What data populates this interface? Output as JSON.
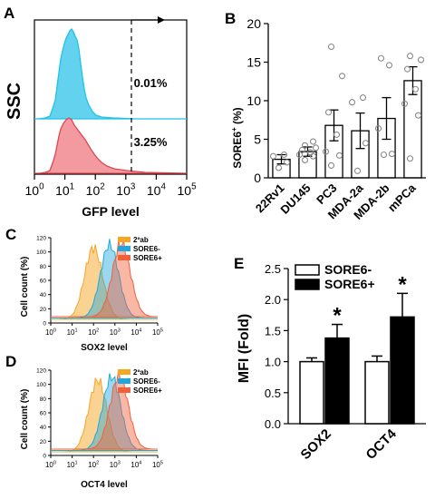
{
  "colors": {
    "teal": "#1ec3e8",
    "teal_fill": "#63d2ee",
    "red": "#e0454f",
    "red_fill": "#f29aa0",
    "orange": "#f5a623",
    "blue": "#1fa8e0",
    "coral": "#f2603a",
    "grey_pts": "#888888",
    "black": "#000000"
  },
  "panel_A": {
    "letter": "A",
    "ylabel": "SSC",
    "xlabel": "GFP level",
    "x_ticks": [
      "10",
      "10",
      "10",
      "10",
      "10",
      "10"
    ],
    "x_exps": [
      "0",
      "1",
      "2",
      "3",
      "4",
      "5"
    ],
    "pct_top": "0.01%",
    "pct_bottom": "3.25%"
  },
  "panel_B": {
    "letter": "B",
    "ylabel_main": "SORE6",
    "ylabel_sup": "+",
    "ylabel_tail": " (%)",
    "y_ticks": [
      "0",
      "5",
      "10",
      "15",
      "20"
    ]
  },
  "panel_C": {
    "letter": "C",
    "ylabel": "Cell count (%)",
    "xlabel": "SOX2 level",
    "legend": [
      "2ºab",
      "SORE6-",
      "SORE6+"
    ]
  },
  "panel_D": {
    "letter": "D",
    "ylabel": "Cell count (%)",
    "xlabel": "OCT4 level",
    "legend": [
      "2ºab",
      "SORE6-",
      "SORE6+"
    ]
  },
  "panel_E": {
    "letter": "E",
    "ylabel": "MFI (Fold)",
    "legend": [
      "SORE6-",
      "SORE6+"
    ],
    "sig_marks": [
      "*",
      "*"
    ]
  },
  "small_hist_ticks": [
    "0",
    "20",
    "40",
    "60",
    "80",
    "100",
    "120"
  ],
  "small_hist_xticks": [
    "10",
    "10",
    "10",
    "10",
    "10",
    "10"
  ],
  "small_hist_xexps": [
    "0",
    "1",
    "2",
    "3",
    "4",
    "5"
  ],
  "chart_data": [
    {
      "panel": "B",
      "type": "bar",
      "categories": [
        "22Rv1",
        "DU145",
        "PC3",
        "MDA-2a",
        "MDA-2b",
        "mPCa"
      ],
      "values": [
        2.4,
        3.4,
        6.8,
        6.1,
        7.7,
        12.6
      ],
      "errors": [
        0.6,
        0.6,
        2.0,
        2.3,
        2.7,
        1.8
      ],
      "points": [
        [
          1.3,
          2.0,
          2.8,
          3.0
        ],
        [
          2.3,
          2.8,
          3.0,
          3.3,
          3.6,
          3.9,
          4.2,
          4.7
        ],
        [
          1.6,
          2.9,
          3.4,
          5.6,
          8.5,
          13.2,
          17.0
        ],
        [
          0.9,
          4.5,
          9.8,
          10.4
        ],
        [
          3.0,
          3.1,
          6.4,
          14.6,
          15.5
        ],
        [
          2.5,
          8.1,
          9.6,
          11.5,
          14.1,
          15.3,
          15.8
        ]
      ],
      "ylabel": "SORE6+ (%)",
      "ylim": [
        0,
        20
      ]
    },
    {
      "panel": "E",
      "type": "bar",
      "categories": [
        "SOX2",
        "OCT4"
      ],
      "series": [
        {
          "name": "SORE6-",
          "values": [
            1.0,
            1.0
          ],
          "errors": [
            0.06,
            0.09
          ]
        },
        {
          "name": "SORE6+",
          "values": [
            1.38,
            1.72
          ],
          "errors": [
            0.22,
            0.38
          ]
        }
      ],
      "ylabel": "MFI (Fold)",
      "y_ticks": [
        "0.0",
        "0.5",
        "1.0",
        "1.5",
        "2.0",
        "2.5"
      ],
      "ylim": [
        0,
        2.5
      ]
    }
  ]
}
